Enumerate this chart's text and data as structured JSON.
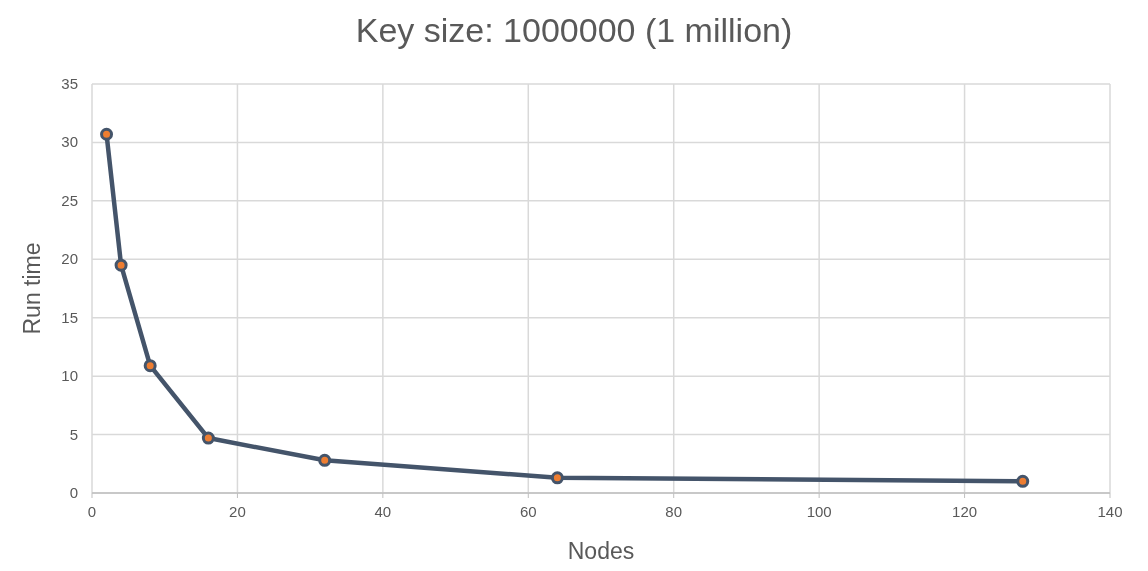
{
  "chart_data": {
    "type": "line",
    "title": "Key size: 1000000 (1 million)",
    "xlabel": "Nodes",
    "ylabel": "Run time",
    "x": [
      2,
      4,
      8,
      16,
      32,
      64,
      128
    ],
    "series": [
      {
        "color": "#44546a",
        "values": [
          30.7,
          19.5,
          10.9,
          4.7,
          2.8,
          1.3,
          1.0
        ]
      }
    ],
    "xlim": [
      0,
      140
    ],
    "xticks": [
      0,
      20,
      40,
      60,
      80,
      100,
      120,
      140
    ],
    "ylim": [
      0,
      35
    ],
    "yticks": [
      0,
      5,
      10,
      15,
      20,
      25,
      30,
      35
    ],
    "grid": true,
    "marker": "circle",
    "line_style": "solid"
  }
}
